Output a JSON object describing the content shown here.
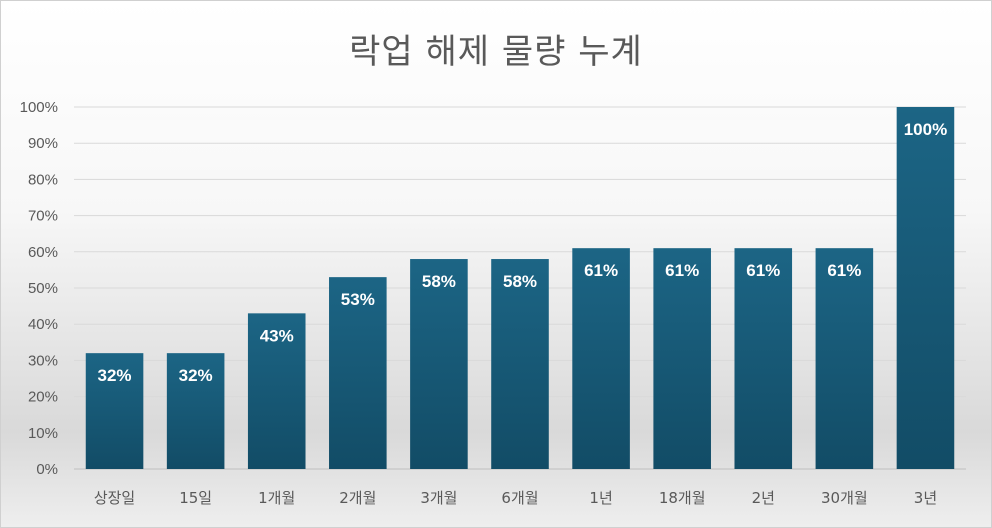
{
  "chart_data": {
    "type": "bar",
    "title": "락업 해제 물량 누계",
    "categories": [
      "상장일",
      "15일",
      "1개월",
      "2개월",
      "3개월",
      "6개월",
      "1년",
      "18개월",
      "2년",
      "30개월",
      "3년"
    ],
    "values": [
      32,
      32,
      43,
      53,
      58,
      58,
      61,
      61,
      61,
      61,
      100
    ],
    "value_labels": [
      "32%",
      "32%",
      "43%",
      "53%",
      "58%",
      "58%",
      "61%",
      "61%",
      "61%",
      "61%",
      "100%"
    ],
    "y_ticks": [
      "0%",
      "10%",
      "20%",
      "30%",
      "40%",
      "50%",
      "60%",
      "70%",
      "80%",
      "90%",
      "100%"
    ],
    "ylim": [
      0,
      100
    ],
    "grid": true,
    "bar_color": "#1a5f80"
  }
}
